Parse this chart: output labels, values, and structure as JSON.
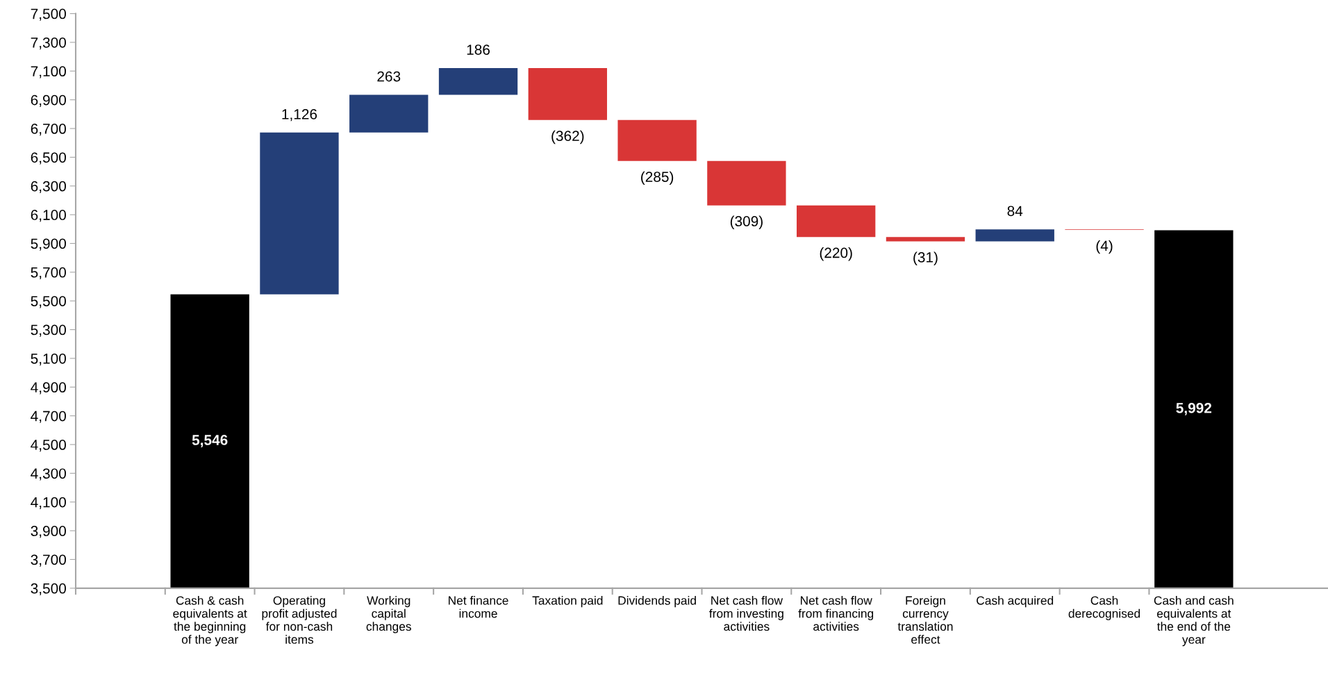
{
  "chart_data": {
    "type": "bar",
    "categories": [
      null,
      "Cash & cash\nequivalents at\nthe beginning\nof the year",
      "Operating\nprofit adjusted\nfor non-cash\nitems",
      "Working\ncapital\nchanges",
      "Net finance\nincome",
      "Taxation paid",
      "Dividends paid",
      "Net cash flow\nfrom investing\nactivities",
      "Net cash flow\nfrom financing\nactivities",
      "Foreign\ncurrency\ntranslation\neffect",
      "Cash acquired",
      "Cash\nderecognised",
      "Cash and cash\nequivalents at\nthe end of the\nyear",
      null
    ],
    "values": [
      null,
      5546,
      1126,
      263,
      186,
      -362,
      -285,
      -309,
      -220,
      -31,
      84,
      -4,
      5992,
      null
    ],
    "base": [
      null,
      0,
      5546,
      6672,
      6935,
      7121,
      6759,
      6474,
      6165,
      5945,
      5914,
      5998,
      0,
      null
    ],
    "colors": [
      null,
      "#000000",
      "#243f78",
      "#243f78",
      "#243f78",
      "#d93636",
      "#d93636",
      "#d93636",
      "#d93636",
      "#d93636",
      "#243f78",
      "#d93636",
      "#000000",
      null
    ],
    "value_labels": [
      null,
      "5,546",
      "1,126",
      "263",
      "186",
      "(362)",
      "(285)",
      "(309)",
      "(220)",
      "(31)",
      "84",
      "(4)",
      "5,992",
      null
    ],
    "ylim": [
      3500,
      7500
    ],
    "yticks": [
      {
        "value": 3500,
        "label": "3,500"
      },
      {
        "value": 3700,
        "label": "3,700"
      },
      {
        "value": 3900,
        "label": "3,900"
      },
      {
        "value": 4100,
        "label": "4,100"
      },
      {
        "value": 4300,
        "label": "4,300"
      },
      {
        "value": 4500,
        "label": "4,500"
      },
      {
        "value": 4700,
        "label": "4,700"
      },
      {
        "value": 4900,
        "label": "4,900"
      },
      {
        "value": 5100,
        "label": "5,100"
      },
      {
        "value": 5300,
        "label": "5,300"
      },
      {
        "value": 5500,
        "label": "5,500"
      },
      {
        "value": 5700,
        "label": "5,700"
      },
      {
        "value": 5900,
        "label": "5,900"
      },
      {
        "value": 6100,
        "label": "6,100"
      },
      {
        "value": 6300,
        "label": "6,300"
      },
      {
        "value": 6500,
        "label": "6,500"
      },
      {
        "value": 6700,
        "label": "6,700"
      },
      {
        "value": 6900,
        "label": "6,900"
      },
      {
        "value": 7100,
        "label": "7,100"
      },
      {
        "value": 7300,
        "label": "7,300"
      },
      {
        "value": 7500,
        "label": "7,500"
      }
    ],
    "grid": false,
    "legend": false
  }
}
